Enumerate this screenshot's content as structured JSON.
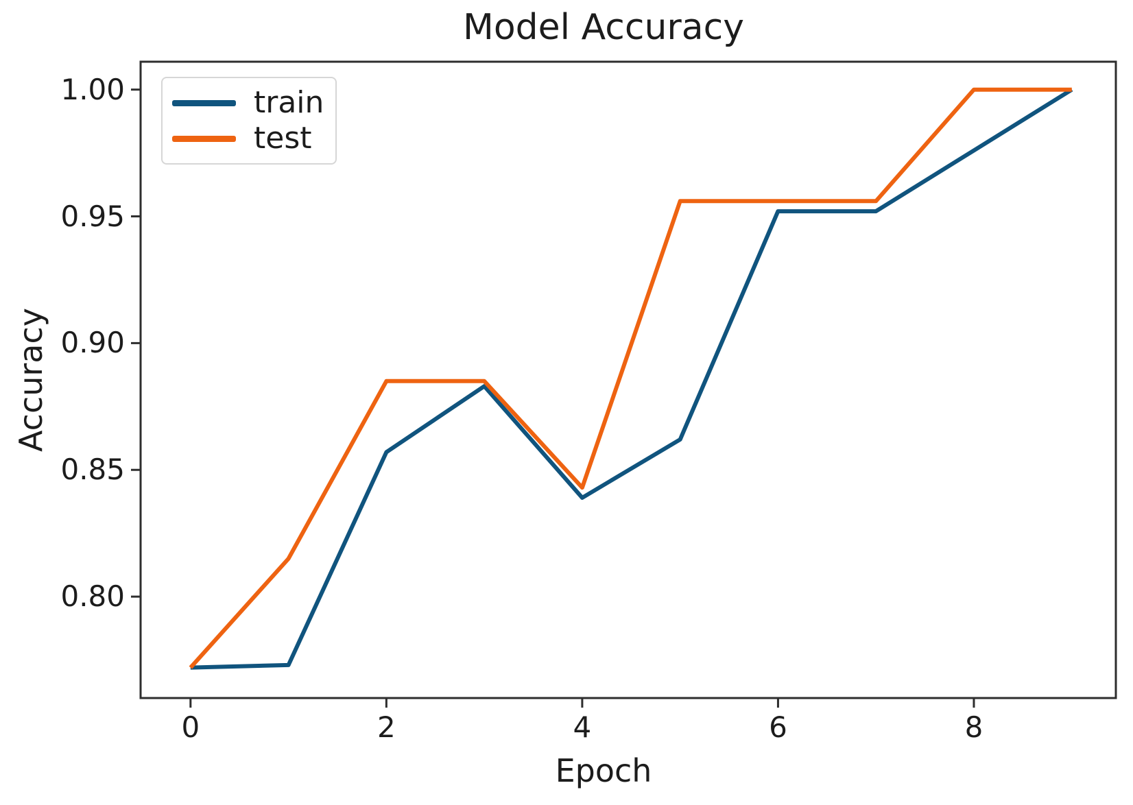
{
  "chart_data": {
    "type": "line",
    "title": "Model Accuracy",
    "xlabel": "Epoch",
    "ylabel": "Accuracy",
    "x": [
      0,
      1,
      2,
      3,
      4,
      5,
      6,
      7,
      8,
      9
    ],
    "series": [
      {
        "name": "train",
        "color": "#10547e",
        "values": [
          0.772,
          0.773,
          0.857,
          0.883,
          0.839,
          0.862,
          0.952,
          0.952,
          0.976,
          1.0
        ]
      },
      {
        "name": "test",
        "color": "#ee6311",
        "values": [
          0.772,
          0.815,
          0.885,
          0.885,
          0.843,
          0.956,
          0.956,
          0.956,
          1.0,
          1.0
        ]
      }
    ],
    "x_ticks": [
      0,
      2,
      4,
      6,
      8
    ],
    "y_ticks": [
      "0.80",
      "0.85",
      "0.90",
      "0.95",
      "1.00"
    ],
    "x_range": [
      -0.51,
      9.45
    ],
    "y_range": [
      0.76,
      1.011
    ],
    "legend_position": "upper left",
    "grid": false
  }
}
